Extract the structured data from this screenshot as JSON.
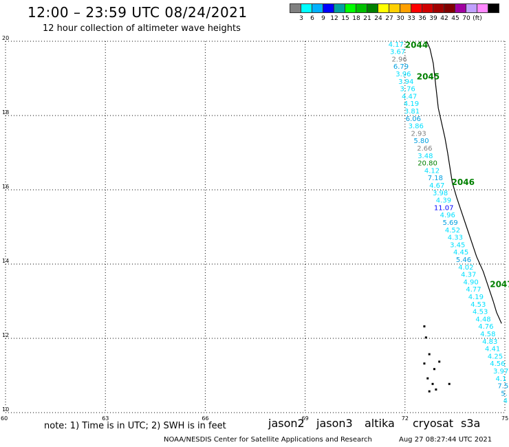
{
  "header": {
    "title": "12:00 – 23:59 UTC 08/24/2021",
    "subtitle": "12 hour collection of altimeter wave heights"
  },
  "colorbar": {
    "colors": [
      "#808080",
      "#00ffff",
      "#00b0ff",
      "#0000ff",
      "#00a0a0",
      "#00ff00",
      "#00c000",
      "#008000",
      "#ffff00",
      "#ffd000",
      "#ffa000",
      "#ff0000",
      "#d00000",
      "#a00000",
      "#800000",
      "#a000a0",
      "#c0a0ff",
      "#ff88ff",
      "#000000"
    ],
    "labels": [
      "3",
      "6",
      "9",
      "12",
      "15",
      "18",
      "21",
      "24",
      "27",
      "30",
      "33",
      "36",
      "39",
      "42",
      "45",
      "70",
      "(ft)"
    ]
  },
  "map": {
    "lon_range": [
      60,
      75
    ],
    "lat_range": [
      10,
      20
    ],
    "lon_ticks": [
      "60",
      "63",
      "66",
      "69",
      "72",
      "75"
    ],
    "lat_ticks": [
      "10",
      "12",
      "14",
      "16",
      "18",
      "20"
    ],
    "grid": true,
    "pass_labels": [
      {
        "text": "2044",
        "lon": 72.0,
        "lat": 19.9
      },
      {
        "text": "2045",
        "lon": 72.35,
        "lat": 19.05
      },
      {
        "text": "2046",
        "lon": 73.4,
        "lat": 16.2
      },
      {
        "text": "2047",
        "lon": 74.55,
        "lat": 13.45
      }
    ],
    "swh_points": [
      {
        "v": "4.17",
        "c": "#00e0ff",
        "lon": 71.5,
        "lat": 19.93
      },
      {
        "v": "3.67",
        "c": "#00e0ff",
        "lon": 71.55,
        "lat": 19.73
      },
      {
        "v": "2.96",
        "c": "#808080",
        "lon": 71.6,
        "lat": 19.53
      },
      {
        "v": "6.79",
        "c": "#00a0e0",
        "lon": 71.65,
        "lat": 19.33
      },
      {
        "v": "3.96",
        "c": "#00e0ff",
        "lon": 71.72,
        "lat": 19.13
      },
      {
        "v": "3.94",
        "c": "#00e0ff",
        "lon": 71.8,
        "lat": 18.93
      },
      {
        "v": "3.76",
        "c": "#00e0ff",
        "lon": 71.85,
        "lat": 18.73
      },
      {
        "v": "4.47",
        "c": "#00e0ff",
        "lon": 71.9,
        "lat": 18.53
      },
      {
        "v": "4.19",
        "c": "#00e0ff",
        "lon": 71.96,
        "lat": 18.33
      },
      {
        "v": "3.81",
        "c": "#00e0ff",
        "lon": 71.98,
        "lat": 18.13
      },
      {
        "v": "6.06",
        "c": "#00a0e0",
        "lon": 72.02,
        "lat": 17.93
      },
      {
        "v": "3.86",
        "c": "#00e0ff",
        "lon": 72.1,
        "lat": 17.73
      },
      {
        "v": "2.93",
        "c": "#808080",
        "lon": 72.18,
        "lat": 17.53
      },
      {
        "v": "5.80",
        "c": "#00a0e0",
        "lon": 72.26,
        "lat": 17.33
      },
      {
        "v": "2.66",
        "c": "#808080",
        "lon": 72.36,
        "lat": 17.13
      },
      {
        "v": "3.48",
        "c": "#00e0ff",
        "lon": 72.38,
        "lat": 16.93
      },
      {
        "v": "20.80",
        "c": "#008000",
        "lon": 72.38,
        "lat": 16.73
      },
      {
        "v": "4.12",
        "c": "#00e0ff",
        "lon": 72.58,
        "lat": 16.53
      },
      {
        "v": "7.18",
        "c": "#00a0e0",
        "lon": 72.68,
        "lat": 16.33
      },
      {
        "v": "4.67",
        "c": "#00e0ff",
        "lon": 72.73,
        "lat": 16.13
      },
      {
        "v": "3.98",
        "c": "#00e0ff",
        "lon": 72.83,
        "lat": 15.93
      },
      {
        "v": "4.39",
        "c": "#00e0ff",
        "lon": 72.93,
        "lat": 15.73
      },
      {
        "v": "11.07",
        "c": "#0000ff",
        "lon": 72.87,
        "lat": 15.53
      },
      {
        "v": "4.96",
        "c": "#00e0ff",
        "lon": 73.05,
        "lat": 15.33
      },
      {
        "v": "5.69",
        "c": "#00a0e0",
        "lon": 73.13,
        "lat": 15.13
      },
      {
        "v": "4.52",
        "c": "#00e0ff",
        "lon": 73.2,
        "lat": 14.93
      },
      {
        "v": "4.33",
        "c": "#00e0ff",
        "lon": 73.28,
        "lat": 14.73
      },
      {
        "v": "3.45",
        "c": "#00e0ff",
        "lon": 73.35,
        "lat": 14.53
      },
      {
        "v": "4.45",
        "c": "#00e0ff",
        "lon": 73.45,
        "lat": 14.33
      },
      {
        "v": "5.46",
        "c": "#00a0e0",
        "lon": 73.53,
        "lat": 14.13
      },
      {
        "v": "4.02",
        "c": "#00e0ff",
        "lon": 73.6,
        "lat": 13.93
      },
      {
        "v": "4.37",
        "c": "#00e0ff",
        "lon": 73.68,
        "lat": 13.73
      },
      {
        "v": "4.90",
        "c": "#00e0ff",
        "lon": 73.75,
        "lat": 13.53
      },
      {
        "v": "4.77",
        "c": "#00e0ff",
        "lon": 73.83,
        "lat": 13.33
      },
      {
        "v": "4.19",
        "c": "#00e0ff",
        "lon": 73.9,
        "lat": 13.13
      },
      {
        "v": "4.53",
        "c": "#00e0ff",
        "lon": 73.97,
        "lat": 12.93
      },
      {
        "v": "4.53",
        "c": "#00e0ff",
        "lon": 74.03,
        "lat": 12.73
      },
      {
        "v": "4.48",
        "c": "#00e0ff",
        "lon": 74.12,
        "lat": 12.53
      },
      {
        "v": "4.76",
        "c": "#00e0ff",
        "lon": 74.2,
        "lat": 12.33
      },
      {
        "v": "4.58",
        "c": "#00e0ff",
        "lon": 74.26,
        "lat": 12.13
      },
      {
        "v": "4.83",
        "c": "#00e0ff",
        "lon": 74.32,
        "lat": 11.93
      },
      {
        "v": "4.41",
        "c": "#00e0ff",
        "lon": 74.4,
        "lat": 11.73
      },
      {
        "v": "4.25",
        "c": "#00e0ff",
        "lon": 74.48,
        "lat": 11.53
      },
      {
        "v": "4.56",
        "c": "#00e0ff",
        "lon": 74.55,
        "lat": 11.33
      },
      {
        "v": "3.97",
        "c": "#00e0ff",
        "lon": 74.65,
        "lat": 11.13
      },
      {
        "v": "4.1",
        "c": "#00e0ff",
        "lon": 74.72,
        "lat": 10.93
      },
      {
        "v": "7.5",
        "c": "#00a0e0",
        "lon": 74.78,
        "lat": 10.73
      },
      {
        "v": "5.",
        "c": "#00a0e0",
        "lon": 74.88,
        "lat": 10.53
      },
      {
        "v": "4",
        "c": "#00e0ff",
        "lon": 74.95,
        "lat": 10.33
      }
    ]
  },
  "footer": {
    "note": "note: 1) Time is in UTC; 2) SWH is in feet",
    "satellites": [
      {
        "name": "jason2",
        "color": "#0000ff"
      },
      {
        "name": "jason3",
        "color": "#008000"
      },
      {
        "name": "altika",
        "color": "#ff8000"
      },
      {
        "name": "cryosat",
        "color": "#ff0000"
      },
      {
        "name": "s3a",
        "color": "#a00000"
      }
    ],
    "credit": "NOAA/NESDIS Center for Satellite Applications and Research",
    "timestamp": "Aug 27 08:27:44 UTC 2021"
  }
}
